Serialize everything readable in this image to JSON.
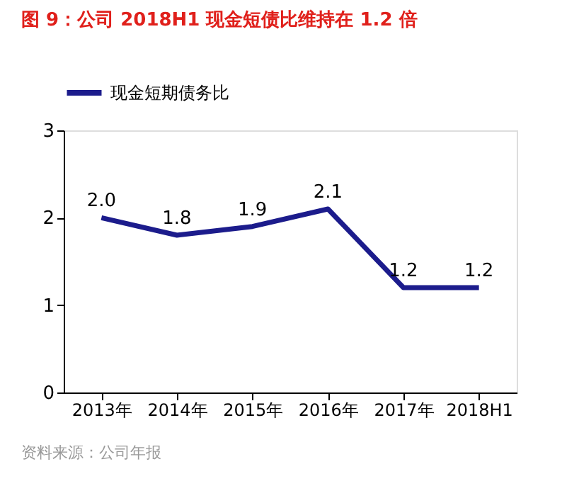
{
  "chart_data": {
    "type": "line",
    "title": "图 9：公司 2018H1 现金短债比维持在 1.2 倍",
    "categories": [
      "2013年",
      "2014年",
      "2015年",
      "2016年",
      "2017年",
      "2018H1"
    ],
    "series": [
      {
        "name": "现金短期债务比",
        "color": "#1c1c8c",
        "values": [
          2.0,
          1.8,
          1.9,
          2.1,
          1.2,
          1.2
        ],
        "value_labels": [
          "2.0",
          "1.8",
          "1.9",
          "2.1",
          "1.2",
          "1.2"
        ]
      }
    ],
    "ylim": [
      0,
      3
    ],
    "yticks": [
      0,
      1,
      2,
      3
    ],
    "grid": false,
    "legend": "top",
    "marker": "none",
    "line_style": "solid",
    "annotations": [
      "资料来源：公司年报"
    ]
  }
}
